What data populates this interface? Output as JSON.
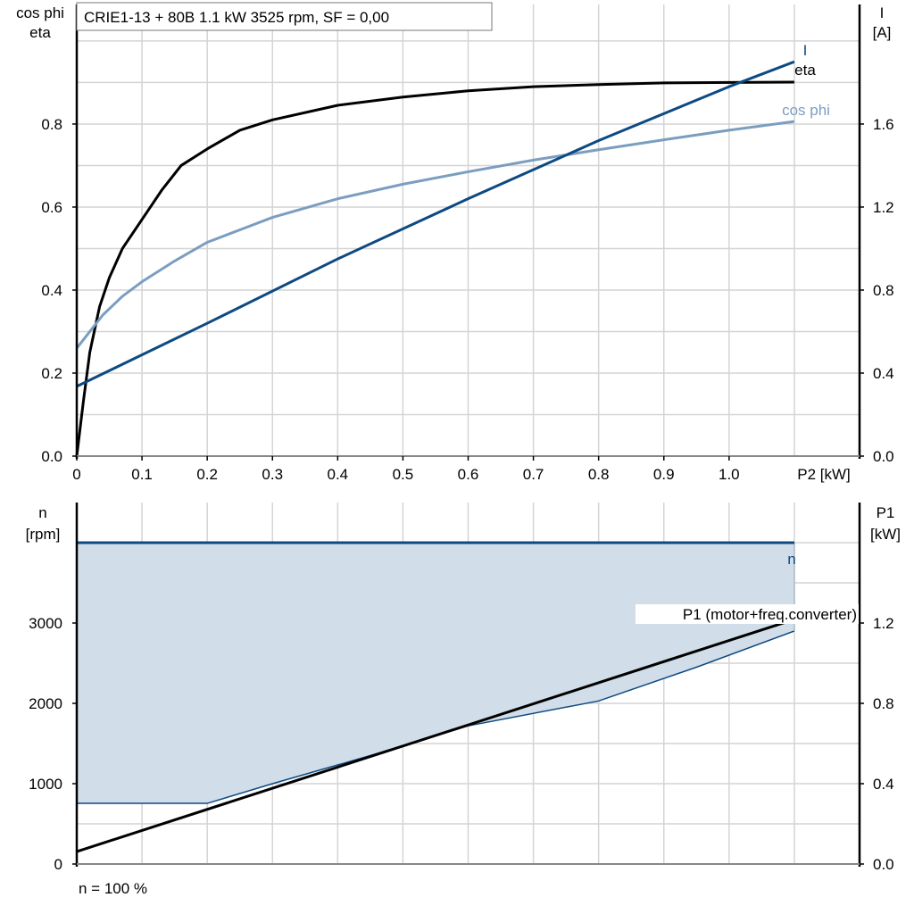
{
  "title": "CRIE1-13 + 80B   1.1 kW   3525 rpm, SF = 0,00",
  "footer": "n = 100 %",
  "colors": {
    "I": "#0d4a82",
    "eta": "#000000",
    "cos_phi": "#7b9ec0",
    "n": "#0d4a82",
    "fill": "#d1dde8",
    "P1": "#000000",
    "grid": "#d4d4d4"
  },
  "chart_data": [
    {
      "type": "line",
      "xlabel": "P2 [kW]",
      "ylabel_left": [
        "cos phi",
        "eta"
      ],
      "ylabel_right": [
        "I",
        "[A]"
      ],
      "xlim": [
        0,
        1.2
      ],
      "ylim_left": [
        0,
        1.088
      ],
      "ylim_right": [
        0,
        2.176
      ],
      "x_ticks": [
        "0",
        "0.1",
        "0.2",
        "0.3",
        "0.4",
        "0.5",
        "0.6",
        "0.7",
        "0.8",
        "0.9",
        "1.0"
      ],
      "y_ticks_left": [
        "0.0",
        "0.2",
        "0.4",
        "0.6",
        "0.8"
      ],
      "y_ticks_right": [
        "0.0",
        "0.4",
        "0.8",
        "1.2",
        "1.6"
      ],
      "grid": true,
      "series": [
        {
          "name": "eta",
          "axis": "left",
          "color": "#000000",
          "x": [
            0,
            0.01,
            0.02,
            0.035,
            0.05,
            0.07,
            0.1,
            0.13,
            0.16,
            0.2,
            0.25,
            0.3,
            0.4,
            0.5,
            0.6,
            0.7,
            0.8,
            0.9,
            1.0,
            1.1
          ],
          "y": [
            0,
            0.13,
            0.25,
            0.36,
            0.43,
            0.5,
            0.57,
            0.64,
            0.7,
            0.74,
            0.785,
            0.81,
            0.845,
            0.865,
            0.88,
            0.89,
            0.895,
            0.899,
            0.9,
            0.901
          ]
        },
        {
          "name": "cos phi",
          "axis": "left",
          "color": "#7b9ec0",
          "x": [
            0,
            0.02,
            0.04,
            0.07,
            0.1,
            0.15,
            0.2,
            0.3,
            0.4,
            0.5,
            0.6,
            0.7,
            0.8,
            0.9,
            1.0,
            1.1
          ],
          "y": [
            0.26,
            0.3,
            0.34,
            0.385,
            0.42,
            0.47,
            0.515,
            0.575,
            0.62,
            0.655,
            0.685,
            0.713,
            0.738,
            0.762,
            0.785,
            0.806
          ]
        },
        {
          "name": "I",
          "axis": "right",
          "color": "#0d4a82",
          "x": [
            0,
            0.2,
            0.4,
            0.6,
            0.8,
            1.0,
            1.1
          ],
          "y": [
            0.336,
            0.64,
            0.95,
            1.24,
            1.52,
            1.78,
            1.9
          ]
        }
      ]
    },
    {
      "type": "area",
      "ylabel_left": [
        "n",
        "[rpm]"
      ],
      "ylabel_right": [
        "P1",
        "[kW]"
      ],
      "xlim": [
        0,
        1.2
      ],
      "ylim_left": [
        0,
        4500
      ],
      "ylim_right": [
        0,
        1.8
      ],
      "y_ticks_left": [
        "0",
        "1000",
        "2000",
        "3000"
      ],
      "y_ticks_right": [
        "0.0",
        "0.4",
        "0.8",
        "1.2"
      ],
      "grid": true,
      "series": [
        {
          "name": "n",
          "axis": "left",
          "color": "#0d4a82",
          "x": [
            0,
            1.1
          ],
          "y": [
            4000,
            4000
          ]
        },
        {
          "name": "P1 (motor+freq.converter)",
          "axis": "right",
          "color": "#000000",
          "x": [
            0,
            1.1
          ],
          "y": [
            0.062,
            1.218
          ]
        }
      ],
      "range_lower": {
        "axis": "left",
        "x": [
          0,
          0.2,
          0.3,
          0.45,
          0.6,
          0.8,
          0.95,
          1.1
        ],
        "y": [
          755,
          755,
          1000,
          1350,
          1720,
          2030,
          2450,
          2900
        ]
      }
    }
  ]
}
